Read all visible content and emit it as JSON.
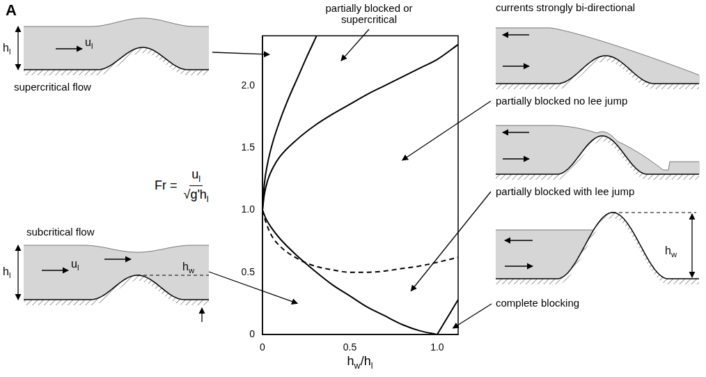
{
  "chart_data": {
    "type": "line",
    "panel": "A",
    "xlabel": [
      {
        "text": "h",
        "sub": "w"
      },
      {
        "text": "/h",
        "sub": "l"
      }
    ],
    "ylabel": {
      "lhs": "Fr =",
      "numerator": {
        "text": "u",
        "sub": "l"
      },
      "denominator": {
        "text": "√g'h",
        "sub": "l"
      }
    },
    "xlim": [
      0,
      1.12
    ],
    "ylim": [
      0,
      2.4
    ],
    "xticks": [
      0,
      0.5,
      {
        "value": 1,
        "label": "1.0"
      }
    ],
    "yticks": [
      0,
      0.5,
      {
        "value": 1,
        "label": "1.0"
      },
      1.5,
      {
        "value": 2,
        "label": "2.0"
      }
    ],
    "grid": false,
    "series": [
      {
        "color": "#000000",
        "line_style": "solid",
        "x": [
          0,
          0.01,
          0.03,
          0.06,
          0.1,
          0.15,
          0.2,
          0.25,
          0.31
        ],
        "values": [
          1,
          1.2,
          1.38,
          1.55,
          1.72,
          1.9,
          2.06,
          2.22,
          2.4
        ]
      },
      {
        "color": "#000000",
        "line_style": "solid",
        "x": [
          0,
          0.01,
          0.03,
          0.06,
          0.1,
          0.2,
          0.3,
          0.4,
          0.5,
          0.6,
          0.7,
          0.8,
          0.9,
          1.0,
          1.12
        ],
        "values": [
          1,
          1.12,
          1.24,
          1.34,
          1.43,
          1.57,
          1.68,
          1.77,
          1.85,
          1.93,
          2.0,
          2.07,
          2.14,
          2.21,
          2.33
        ]
      },
      {
        "color": "#000000",
        "line_style": "dashed",
        "x": [
          0,
          0.02,
          0.05,
          0.1,
          0.2,
          0.3,
          0.4,
          0.5,
          0.6,
          0.7,
          0.8,
          0.9,
          1.0,
          1.12
        ],
        "values": [
          1,
          0.9,
          0.8,
          0.71,
          0.61,
          0.55,
          0.52,
          0.5,
          0.5,
          0.51,
          0.53,
          0.55,
          0.58,
          0.62
        ]
      },
      {
        "color": "#000000",
        "line_style": "solid",
        "x": [
          0,
          0.02,
          0.05,
          0.1,
          0.2,
          0.3,
          0.4,
          0.5,
          0.6,
          0.7,
          0.8,
          0.9,
          1.0
        ],
        "values": [
          1,
          0.93,
          0.86,
          0.77,
          0.63,
          0.51,
          0.4,
          0.31,
          0.22,
          0.15,
          0.08,
          0.03,
          0
        ]
      },
      {
        "color": "#000000",
        "line_style": "solid",
        "x": [
          1.0,
          1.12
        ],
        "values": [
          0,
          0.28
        ]
      }
    ],
    "annotations": [
      {
        "text": "partially blocked or supercritical"
      }
    ],
    "sketches": [
      {
        "caption": "supercritical flow",
        "labels": [
          {
            "text": "h",
            "sub": "l"
          },
          {
            "text": "u",
            "sub": "l"
          }
        ]
      },
      {
        "caption": "subcritical flow",
        "labels": [
          {
            "text": "h",
            "sub": "l"
          },
          {
            "text": "u",
            "sub": "l"
          },
          {
            "text": "h",
            "sub": "w"
          }
        ]
      },
      {
        "header": "currents strongly bi-directional",
        "caption": "partially blocked no lee jump",
        "labels": []
      },
      {
        "caption": "partially blocked with lee jump",
        "labels": []
      },
      {
        "caption": "complete blocking",
        "labels": [
          {
            "text": "h",
            "sub": "w"
          }
        ]
      }
    ]
  }
}
